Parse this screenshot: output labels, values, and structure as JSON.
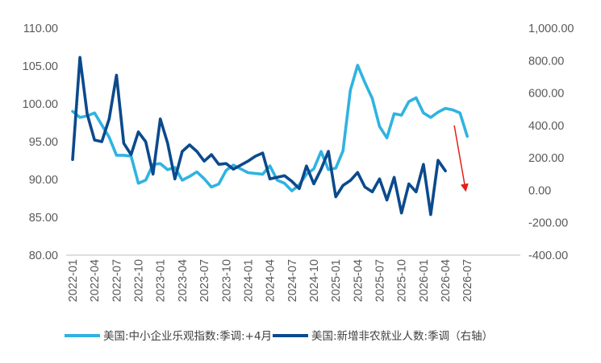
{
  "chart_data": {
    "type": "line",
    "x": [
      "2022-01",
      "2022-02",
      "2022-03",
      "2022-04",
      "2022-05",
      "2022-06",
      "2022-07",
      "2022-08",
      "2022-09",
      "2022-10",
      "2022-11",
      "2022-12",
      "2023-01",
      "2023-02",
      "2023-03",
      "2023-04",
      "2023-05",
      "2023-06",
      "2023-07",
      "2023-08",
      "2023-09",
      "2023-10",
      "2023-11",
      "2023-12",
      "2024-01",
      "2024-02",
      "2024-03",
      "2024-04",
      "2024-05",
      "2024-06",
      "2024-07",
      "2024-08",
      "2024-09",
      "2024-10",
      "2024-11",
      "2024-12",
      "2025-01",
      "2025-02",
      "2025-03",
      "2025-04",
      "2025-05",
      "2025-06",
      "2025-07",
      "2025-08",
      "2025-09",
      "2025-10",
      "2025-11",
      "2025-12",
      "2026-01",
      "2026-02",
      "2026-03",
      "2026-04",
      "2026-05",
      "2026-06",
      "2026-07"
    ],
    "xticks": [
      "2022-01",
      "2022-04",
      "2022-07",
      "2022-10",
      "2023-01",
      "2023-04",
      "2023-07",
      "2023-10",
      "2024-01",
      "2024-04",
      "2024-07",
      "2024-10",
      "2025-01",
      "2025-04",
      "2025-07",
      "2025-10",
      "2026-01",
      "2026-04",
      "2026-07"
    ],
    "series": [
      {
        "name": "美国:中小企业乐观指数:季调:+4月",
        "axis": "left",
        "color": "#2fb3e0",
        "values": [
          99.0,
          98.2,
          98.4,
          98.8,
          97.2,
          95.6,
          93.2,
          93.2,
          93.1,
          89.5,
          89.9,
          92.0,
          92.1,
          91.3,
          91.6,
          89.9,
          90.4,
          91.0,
          90.1,
          89.0,
          89.4,
          91.2,
          91.9,
          91.4,
          90.9,
          90.8,
          90.7,
          91.8,
          89.9,
          89.5,
          88.5,
          89.3,
          90.7,
          91.4,
          93.7,
          91.3,
          91.5,
          93.8,
          101.8,
          105.1,
          102.8,
          100.7,
          97.0,
          95.5,
          98.7,
          98.5,
          100.3,
          100.8,
          98.8,
          98.2,
          98.9,
          99.4,
          99.2,
          98.8,
          95.7
        ]
      },
      {
        "name": "美国:新增非农就业人数:季调（右轴）",
        "axis": "right",
        "color": "#0b4a8c",
        "values": [
          190,
          820,
          470,
          310,
          300,
          440,
          710,
          290,
          220,
          360,
          300,
          100,
          440,
          290,
          70,
          240,
          280,
          240,
          180,
          220,
          160,
          165,
          130,
          155,
          180,
          210,
          230,
          70,
          80,
          90,
          55,
          10,
          150,
          40,
          130,
          240,
          -40,
          30,
          60,
          110,
          20,
          -10,
          70,
          -60,
          80,
          -140,
          40,
          -10,
          160,
          -150,
          185,
          120,
          null,
          null,
          null
        ]
      }
    ],
    "left_axis": {
      "min": 80,
      "max": 110,
      "ticks": [
        "80.00",
        "85.00",
        "90.00",
        "95.00",
        "100.00",
        "105.00",
        "110.00"
      ]
    },
    "right_axis": {
      "min": -400,
      "max": 1000,
      "ticks": [
        "-400.00",
        "-200.00",
        "0.00",
        "200.00",
        "400.00",
        "600.00",
        "800.00",
        "1,000.00"
      ]
    },
    "annotation": {
      "type": "arrow",
      "color": "#e0201b",
      "from": [
        "2026-05",
        400
      ],
      "to": [
        "2026-07",
        0
      ]
    },
    "legend": {
      "placement": "bottom",
      "items": [
        "美国:中小企业乐观指数:季调:+4月",
        "美国:新增非农就业人数:季调（右轴）"
      ]
    },
    "grid": false
  }
}
